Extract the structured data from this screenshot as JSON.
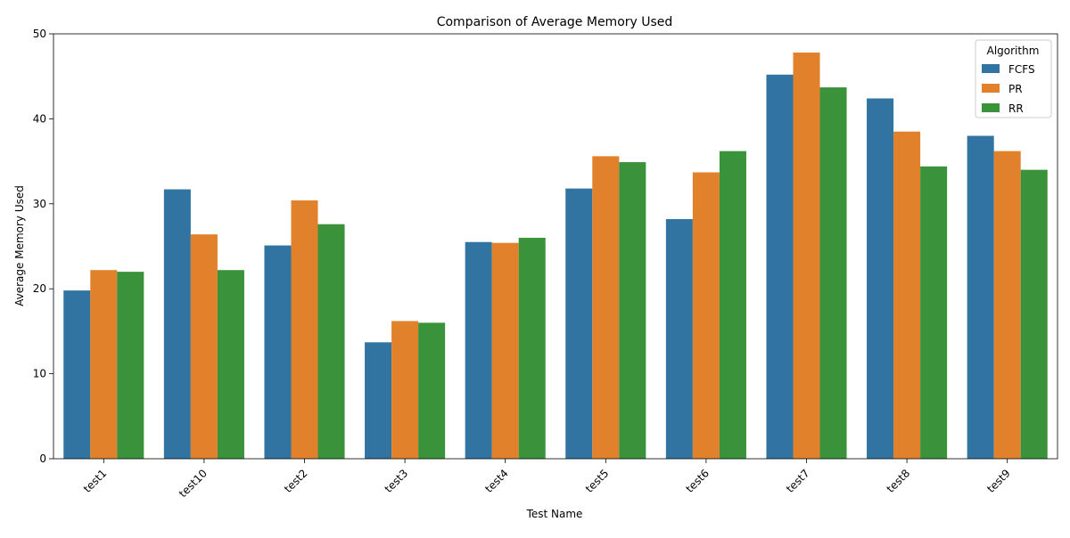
{
  "chart_data": {
    "type": "bar",
    "title": "Comparison of Average Memory Used",
    "xlabel": "Test Name",
    "ylabel": "Average Memory Used",
    "categories": [
      "test1",
      "test10",
      "test2",
      "test3",
      "test4",
      "test5",
      "test6",
      "test7",
      "test8",
      "test9"
    ],
    "series": [
      {
        "name": "FCFS",
        "color": "#3274a1",
        "values": [
          19.8,
          31.7,
          25.1,
          13.7,
          25.5,
          31.8,
          28.2,
          45.2,
          42.4,
          38.0
        ]
      },
      {
        "name": "PR",
        "color": "#e1812c",
        "values": [
          22.2,
          26.4,
          30.4,
          16.2,
          25.4,
          35.6,
          33.7,
          47.8,
          38.5,
          36.2
        ]
      },
      {
        "name": "RR",
        "color": "#3a923a",
        "values": [
          22.0,
          22.2,
          27.6,
          16.0,
          26.0,
          34.9,
          36.2,
          43.7,
          34.4,
          34.0
        ]
      }
    ],
    "ylim": [
      0,
      50
    ],
    "yticks": [
      0,
      10,
      20,
      30,
      40,
      50
    ],
    "grid": false,
    "legend": {
      "title": "Algorithm",
      "placement": "top-right"
    },
    "xtick_rotation": 45
  }
}
